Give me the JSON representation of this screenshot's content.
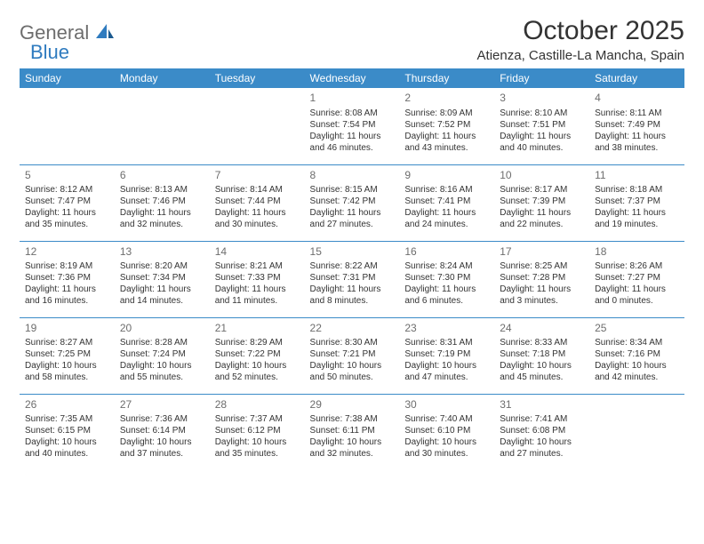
{
  "logo": {
    "text1": "General",
    "text2": "Blue"
  },
  "title": "October 2025",
  "location": "Atienza, Castille-La Mancha, Spain",
  "colors": {
    "header_bg": "#3b8bc8",
    "header_text": "#ffffff",
    "body_text": "#333333",
    "muted_text": "#6d6d6d",
    "rule": "#3b8bc8",
    "logo_grey": "#6d6d6d",
    "logo_blue": "#2f7bbf"
  },
  "day_headers": [
    "Sunday",
    "Monday",
    "Tuesday",
    "Wednesday",
    "Thursday",
    "Friday",
    "Saturday"
  ],
  "weeks": [
    [
      null,
      null,
      null,
      {
        "n": "1",
        "sr": "8:08 AM",
        "ss": "7:54 PM",
        "dl": "11 hours and 46 minutes."
      },
      {
        "n": "2",
        "sr": "8:09 AM",
        "ss": "7:52 PM",
        "dl": "11 hours and 43 minutes."
      },
      {
        "n": "3",
        "sr": "8:10 AM",
        "ss": "7:51 PM",
        "dl": "11 hours and 40 minutes."
      },
      {
        "n": "4",
        "sr": "8:11 AM",
        "ss": "7:49 PM",
        "dl": "11 hours and 38 minutes."
      }
    ],
    [
      {
        "n": "5",
        "sr": "8:12 AM",
        "ss": "7:47 PM",
        "dl": "11 hours and 35 minutes."
      },
      {
        "n": "6",
        "sr": "8:13 AM",
        "ss": "7:46 PM",
        "dl": "11 hours and 32 minutes."
      },
      {
        "n": "7",
        "sr": "8:14 AM",
        "ss": "7:44 PM",
        "dl": "11 hours and 30 minutes."
      },
      {
        "n": "8",
        "sr": "8:15 AM",
        "ss": "7:42 PM",
        "dl": "11 hours and 27 minutes."
      },
      {
        "n": "9",
        "sr": "8:16 AM",
        "ss": "7:41 PM",
        "dl": "11 hours and 24 minutes."
      },
      {
        "n": "10",
        "sr": "8:17 AM",
        "ss": "7:39 PM",
        "dl": "11 hours and 22 minutes."
      },
      {
        "n": "11",
        "sr": "8:18 AM",
        "ss": "7:37 PM",
        "dl": "11 hours and 19 minutes."
      }
    ],
    [
      {
        "n": "12",
        "sr": "8:19 AM",
        "ss": "7:36 PM",
        "dl": "11 hours and 16 minutes."
      },
      {
        "n": "13",
        "sr": "8:20 AM",
        "ss": "7:34 PM",
        "dl": "11 hours and 14 minutes."
      },
      {
        "n": "14",
        "sr": "8:21 AM",
        "ss": "7:33 PM",
        "dl": "11 hours and 11 minutes."
      },
      {
        "n": "15",
        "sr": "8:22 AM",
        "ss": "7:31 PM",
        "dl": "11 hours and 8 minutes."
      },
      {
        "n": "16",
        "sr": "8:24 AM",
        "ss": "7:30 PM",
        "dl": "11 hours and 6 minutes."
      },
      {
        "n": "17",
        "sr": "8:25 AM",
        "ss": "7:28 PM",
        "dl": "11 hours and 3 minutes."
      },
      {
        "n": "18",
        "sr": "8:26 AM",
        "ss": "7:27 PM",
        "dl": "11 hours and 0 minutes."
      }
    ],
    [
      {
        "n": "19",
        "sr": "8:27 AM",
        "ss": "7:25 PM",
        "dl": "10 hours and 58 minutes."
      },
      {
        "n": "20",
        "sr": "8:28 AM",
        "ss": "7:24 PM",
        "dl": "10 hours and 55 minutes."
      },
      {
        "n": "21",
        "sr": "8:29 AM",
        "ss": "7:22 PM",
        "dl": "10 hours and 52 minutes."
      },
      {
        "n": "22",
        "sr": "8:30 AM",
        "ss": "7:21 PM",
        "dl": "10 hours and 50 minutes."
      },
      {
        "n": "23",
        "sr": "8:31 AM",
        "ss": "7:19 PM",
        "dl": "10 hours and 47 minutes."
      },
      {
        "n": "24",
        "sr": "8:33 AM",
        "ss": "7:18 PM",
        "dl": "10 hours and 45 minutes."
      },
      {
        "n": "25",
        "sr": "8:34 AM",
        "ss": "7:16 PM",
        "dl": "10 hours and 42 minutes."
      }
    ],
    [
      {
        "n": "26",
        "sr": "7:35 AM",
        "ss": "6:15 PM",
        "dl": "10 hours and 40 minutes."
      },
      {
        "n": "27",
        "sr": "7:36 AM",
        "ss": "6:14 PM",
        "dl": "10 hours and 37 minutes."
      },
      {
        "n": "28",
        "sr": "7:37 AM",
        "ss": "6:12 PM",
        "dl": "10 hours and 35 minutes."
      },
      {
        "n": "29",
        "sr": "7:38 AM",
        "ss": "6:11 PM",
        "dl": "10 hours and 32 minutes."
      },
      {
        "n": "30",
        "sr": "7:40 AM",
        "ss": "6:10 PM",
        "dl": "10 hours and 30 minutes."
      },
      {
        "n": "31",
        "sr": "7:41 AM",
        "ss": "6:08 PM",
        "dl": "10 hours and 27 minutes."
      },
      null
    ]
  ],
  "labels": {
    "sunrise": "Sunrise:",
    "sunset": "Sunset:",
    "daylight": "Daylight:"
  }
}
